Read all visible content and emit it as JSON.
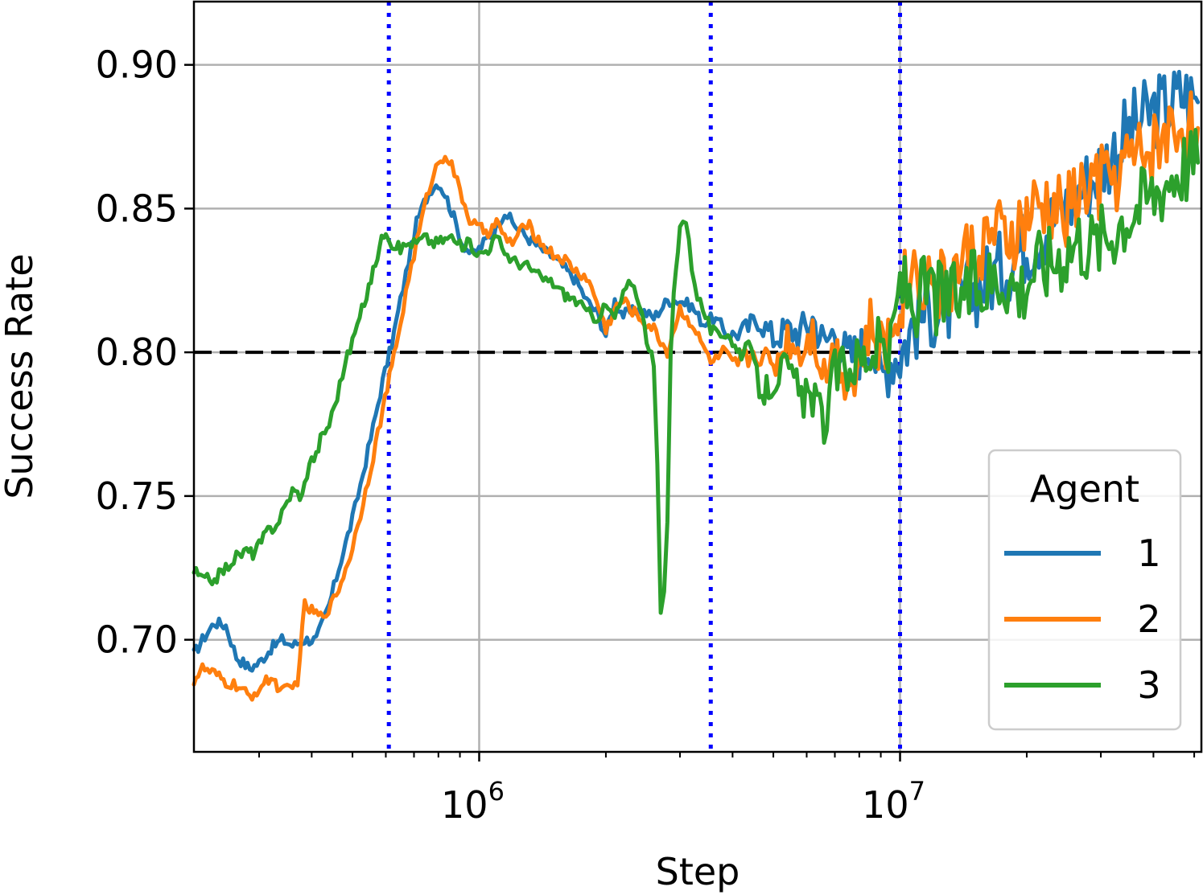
{
  "chart_data": {
    "type": "line",
    "title": "",
    "xlabel": "Step",
    "ylabel": "Success Rate",
    "xscale": "log",
    "xlim": [
      210000,
      52000000
    ],
    "ylim": [
      0.661,
      0.922
    ],
    "grid": true,
    "x_major_ticks": [
      {
        "value": 1000000,
        "base": "10",
        "exp": "6"
      },
      {
        "value": 10000000,
        "base": "10",
        "exp": "7"
      }
    ],
    "y_ticks": [
      {
        "value": 0.7,
        "label": "0.70"
      },
      {
        "value": 0.75,
        "label": "0.75"
      },
      {
        "value": 0.8,
        "label": "0.80"
      },
      {
        "value": 0.85,
        "label": "0.85"
      },
      {
        "value": 0.9,
        "label": "0.90"
      }
    ],
    "reference_lines": {
      "horizontal": {
        "y": 0.8,
        "color": "#000000",
        "style": "dashed"
      },
      "vertical": {
        "x": [
          610000,
          3550000,
          10000000
        ],
        "color": "#0000ff",
        "style": "dotted"
      }
    },
    "legend": {
      "title": "Agent",
      "placement": "lower-right"
    },
    "series": [
      {
        "name": "1",
        "color": "#1f77b4",
        "points": [
          [
            210000,
            0.695
          ],
          [
            220000,
            0.7
          ],
          [
            235000,
            0.706
          ],
          [
            250000,
            0.705
          ],
          [
            265000,
            0.694
          ],
          [
            285000,
            0.69
          ],
          [
            300000,
            0.692
          ],
          [
            320000,
            0.697
          ],
          [
            340000,
            0.7
          ],
          [
            360000,
            0.698
          ],
          [
            385000,
            0.7
          ],
          [
            410000,
            0.7
          ],
          [
            440000,
            0.712
          ],
          [
            470000,
            0.728
          ],
          [
            500000,
            0.742
          ],
          [
            530000,
            0.758
          ],
          [
            560000,
            0.774
          ],
          [
            590000,
            0.79
          ],
          [
            620000,
            0.803
          ],
          [
            650000,
            0.818
          ],
          [
            680000,
            0.832
          ],
          [
            710000,
            0.845
          ],
          [
            740000,
            0.852
          ],
          [
            770000,
            0.857
          ],
          [
            800000,
            0.859
          ],
          [
            830000,
            0.855
          ],
          [
            870000,
            0.847
          ],
          [
            910000,
            0.838
          ],
          [
            960000,
            0.834
          ],
          [
            1000000,
            0.836
          ],
          [
            1050000,
            0.84
          ],
          [
            1100000,
            0.844
          ],
          [
            1150000,
            0.849
          ],
          [
            1200000,
            0.845
          ],
          [
            1300000,
            0.84
          ],
          [
            1400000,
            0.836
          ],
          [
            1500000,
            0.833
          ],
          [
            1600000,
            0.829
          ],
          [
            1700000,
            0.825
          ],
          [
            1800000,
            0.818
          ],
          [
            1900000,
            0.814
          ],
          [
            2000000,
            0.806
          ],
          [
            2100000,
            0.818
          ],
          [
            2200000,
            0.813
          ],
          [
            2400000,
            0.815
          ],
          [
            2600000,
            0.812
          ],
          [
            2800000,
            0.818
          ],
          [
            3000000,
            0.818
          ],
          [
            3200000,
            0.816
          ],
          [
            3400000,
            0.81
          ],
          [
            3600000,
            0.812
          ],
          [
            3800000,
            0.808
          ],
          [
            4000000,
            0.806
          ],
          [
            4300000,
            0.808
          ],
          [
            4600000,
            0.812
          ],
          [
            5000000,
            0.805
          ],
          [
            5400000,
            0.808
          ],
          [
            5800000,
            0.807
          ],
          [
            6200000,
            0.812
          ],
          [
            6600000,
            0.803
          ],
          [
            7000000,
            0.808
          ],
          [
            7500000,
            0.798
          ],
          [
            8000000,
            0.8
          ],
          [
            8500000,
            0.805
          ],
          [
            9000000,
            0.79
          ],
          [
            9500000,
            0.798
          ],
          [
            10000000,
            0.8
          ],
          [
            10800000,
            0.81
          ],
          [
            11700000,
            0.815
          ],
          [
            12700000,
            0.815
          ],
          [
            13800000,
            0.818
          ],
          [
            15000000,
            0.822
          ],
          [
            16300000,
            0.826
          ],
          [
            17700000,
            0.83
          ],
          [
            19200000,
            0.836
          ],
          [
            20800000,
            0.84
          ],
          [
            22600000,
            0.845
          ],
          [
            24500000,
            0.85
          ],
          [
            26600000,
            0.856
          ],
          [
            28900000,
            0.862
          ],
          [
            31400000,
            0.868
          ],
          [
            34100000,
            0.875
          ],
          [
            37000000,
            0.88
          ],
          [
            40200000,
            0.884
          ],
          [
            43600000,
            0.886
          ],
          [
            47300000,
            0.89
          ],
          [
            51000000,
            0.887
          ]
        ]
      },
      {
        "name": "2",
        "color": "#ff7f0e",
        "points": [
          [
            210000,
            0.686
          ],
          [
            220000,
            0.69
          ],
          [
            235000,
            0.688
          ],
          [
            250000,
            0.685
          ],
          [
            265000,
            0.684
          ],
          [
            285000,
            0.68
          ],
          [
            300000,
            0.683
          ],
          [
            320000,
            0.687
          ],
          [
            340000,
            0.682
          ],
          [
            360000,
            0.683
          ],
          [
            370000,
            0.686
          ],
          [
            385000,
            0.712
          ],
          [
            400000,
            0.71
          ],
          [
            420000,
            0.708
          ],
          [
            445000,
            0.712
          ],
          [
            470000,
            0.72
          ],
          [
            500000,
            0.732
          ],
          [
            530000,
            0.748
          ],
          [
            560000,
            0.764
          ],
          [
            590000,
            0.78
          ],
          [
            620000,
            0.795
          ],
          [
            650000,
            0.81
          ],
          [
            680000,
            0.826
          ],
          [
            710000,
            0.838
          ],
          [
            740000,
            0.85
          ],
          [
            770000,
            0.86
          ],
          [
            800000,
            0.866
          ],
          [
            830000,
            0.869
          ],
          [
            860000,
            0.865
          ],
          [
            900000,
            0.856
          ],
          [
            950000,
            0.846
          ],
          [
            1000000,
            0.843
          ],
          [
            1050000,
            0.842
          ],
          [
            1100000,
            0.845
          ],
          [
            1150000,
            0.84
          ],
          [
            1200000,
            0.838
          ],
          [
            1300000,
            0.845
          ],
          [
            1400000,
            0.838
          ],
          [
            1500000,
            0.834
          ],
          [
            1600000,
            0.832
          ],
          [
            1700000,
            0.828
          ],
          [
            1800000,
            0.826
          ],
          [
            1900000,
            0.818
          ],
          [
            2000000,
            0.808
          ],
          [
            2100000,
            0.815
          ],
          [
            2200000,
            0.818
          ],
          [
            2400000,
            0.812
          ],
          [
            2600000,
            0.808
          ],
          [
            2800000,
            0.8
          ],
          [
            3000000,
            0.815
          ],
          [
            3200000,
            0.81
          ],
          [
            3400000,
            0.802
          ],
          [
            3600000,
            0.796
          ],
          [
            3800000,
            0.8
          ],
          [
            4000000,
            0.795
          ],
          [
            4300000,
            0.798
          ],
          [
            4600000,
            0.8
          ],
          [
            5000000,
            0.795
          ],
          [
            5400000,
            0.805
          ],
          [
            5800000,
            0.8
          ],
          [
            6200000,
            0.808
          ],
          [
            6600000,
            0.792
          ],
          [
            7000000,
            0.802
          ],
          [
            7500000,
            0.79
          ],
          [
            8000000,
            0.795
          ],
          [
            8500000,
            0.808
          ],
          [
            9000000,
            0.8
          ],
          [
            9500000,
            0.806
          ],
          [
            10000000,
            0.82
          ],
          [
            10800000,
            0.83
          ],
          [
            11700000,
            0.825
          ],
          [
            12700000,
            0.822
          ],
          [
            13800000,
            0.83
          ],
          [
            15000000,
            0.835
          ],
          [
            16300000,
            0.84
          ],
          [
            17700000,
            0.838
          ],
          [
            19200000,
            0.842
          ],
          [
            20800000,
            0.848
          ],
          [
            22600000,
            0.85
          ],
          [
            24500000,
            0.848
          ],
          [
            26600000,
            0.855
          ],
          [
            28900000,
            0.858
          ],
          [
            31400000,
            0.86
          ],
          [
            34100000,
            0.865
          ],
          [
            37000000,
            0.868
          ],
          [
            40200000,
            0.872
          ],
          [
            43600000,
            0.876
          ],
          [
            47300000,
            0.88
          ],
          [
            51000000,
            0.878
          ]
        ]
      },
      {
        "name": "3",
        "color": "#2ca02c",
        "points": [
          [
            210000,
            0.724
          ],
          [
            220000,
            0.721
          ],
          [
            235000,
            0.721
          ],
          [
            250000,
            0.725
          ],
          [
            265000,
            0.729
          ],
          [
            280000,
            0.731
          ],
          [
            290000,
            0.73
          ],
          [
            300000,
            0.733
          ],
          [
            315000,
            0.738
          ],
          [
            330000,
            0.74
          ],
          [
            345000,
            0.746
          ],
          [
            360000,
            0.752
          ],
          [
            380000,
            0.75
          ],
          [
            395000,
            0.762
          ],
          [
            410000,
            0.764
          ],
          [
            420000,
            0.77
          ],
          [
            440000,
            0.775
          ],
          [
            460000,
            0.785
          ],
          [
            480000,
            0.796
          ],
          [
            500000,
            0.804
          ],
          [
            520000,
            0.812
          ],
          [
            540000,
            0.82
          ],
          [
            560000,
            0.828
          ],
          [
            580000,
            0.837
          ],
          [
            600000,
            0.843
          ],
          [
            620000,
            0.838
          ],
          [
            650000,
            0.836
          ],
          [
            680000,
            0.838
          ],
          [
            710000,
            0.838
          ],
          [
            740000,
            0.84
          ],
          [
            780000,
            0.838
          ],
          [
            820000,
            0.839
          ],
          [
            860000,
            0.84
          ],
          [
            900000,
            0.837
          ],
          [
            950000,
            0.838
          ],
          [
            1000000,
            0.834
          ],
          [
            1050000,
            0.836
          ],
          [
            1100000,
            0.84
          ],
          [
            1150000,
            0.835
          ],
          [
            1200000,
            0.832
          ],
          [
            1300000,
            0.83
          ],
          [
            1400000,
            0.826
          ],
          [
            1500000,
            0.824
          ],
          [
            1600000,
            0.82
          ],
          [
            1700000,
            0.818
          ],
          [
            1800000,
            0.814
          ],
          [
            1900000,
            0.812
          ],
          [
            2000000,
            0.816
          ],
          [
            2100000,
            0.812
          ],
          [
            2200000,
            0.82
          ],
          [
            2300000,
            0.825
          ],
          [
            2400000,
            0.818
          ],
          [
            2500000,
            0.805
          ],
          [
            2600000,
            0.795
          ],
          [
            2650000,
            0.76
          ],
          [
            2700000,
            0.71
          ],
          [
            2750000,
            0.715
          ],
          [
            2800000,
            0.74
          ],
          [
            2850000,
            0.8
          ],
          [
            2900000,
            0.82
          ],
          [
            3000000,
            0.845
          ],
          [
            3100000,
            0.846
          ],
          [
            3200000,
            0.83
          ],
          [
            3300000,
            0.82
          ],
          [
            3400000,
            0.815
          ],
          [
            3550000,
            0.808
          ],
          [
            3700000,
            0.805
          ],
          [
            3900000,
            0.808
          ],
          [
            4100000,
            0.8
          ],
          [
            4300000,
            0.802
          ],
          [
            4500000,
            0.795
          ],
          [
            4700000,
            0.785
          ],
          [
            5000000,
            0.79
          ],
          [
            5300000,
            0.795
          ],
          [
            5600000,
            0.79
          ],
          [
            5900000,
            0.783
          ],
          [
            6200000,
            0.785
          ],
          [
            6600000,
            0.775
          ],
          [
            7000000,
            0.793
          ],
          [
            7500000,
            0.795
          ],
          [
            8000000,
            0.798
          ],
          [
            8500000,
            0.8
          ],
          [
            9000000,
            0.802
          ],
          [
            9500000,
            0.8
          ],
          [
            10000000,
            0.825
          ],
          [
            10800000,
            0.818
          ],
          [
            11700000,
            0.822
          ],
          [
            12700000,
            0.818
          ],
          [
            13800000,
            0.82
          ],
          [
            15000000,
            0.822
          ],
          [
            16300000,
            0.825
          ],
          [
            17700000,
            0.828
          ],
          [
            19200000,
            0.822
          ],
          [
            20800000,
            0.83
          ],
          [
            22600000,
            0.832
          ],
          [
            24500000,
            0.836
          ],
          [
            26600000,
            0.84
          ],
          [
            28900000,
            0.838
          ],
          [
            31400000,
            0.842
          ],
          [
            34100000,
            0.848
          ],
          [
            37000000,
            0.852
          ],
          [
            40200000,
            0.856
          ],
          [
            43600000,
            0.862
          ],
          [
            47300000,
            0.866
          ],
          [
            51000000,
            0.866
          ]
        ]
      }
    ]
  }
}
